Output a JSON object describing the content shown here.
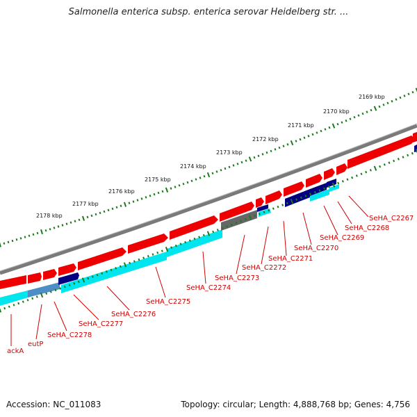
{
  "title": "Salmonella enterica subsp. enterica serovar Heidelberg str. ...",
  "footer": {
    "accession": "Accession: NC_011083",
    "summary": "Topology: circular; Length: 4,888,768 bp; Genes: 4,756"
  },
  "ruler": {
    "ticks": [
      "2169 kbp",
      "2170 kbp",
      "2171 kbp",
      "2172 kbp",
      "2173 kbp",
      "2174 kbp",
      "2175 kbp",
      "2176 kbp",
      "2177 kbp",
      "2178 kbp"
    ]
  },
  "genes": [
    "SeHA_C2267",
    "SeHA_C2268",
    "SeHA_C2269",
    "SeHA_C2270",
    "SeHA_C2271",
    "SeHA_C2272",
    "SeHA_C2273",
    "SeHA_C2274",
    "SeHA_C2275",
    "SeHA_C2276",
    "SeHA_C2277",
    "SeHA_C2278",
    "eutP",
    "ackA"
  ],
  "colors": {
    "backbone": "#7a7a7a",
    "forward_cds": "#ee0000",
    "reverse_cds": "#00e5ee",
    "reverse_other": "#000080",
    "pseudo": "#666666",
    "ruler": "#1a7a1a",
    "label": "#d10000"
  }
}
